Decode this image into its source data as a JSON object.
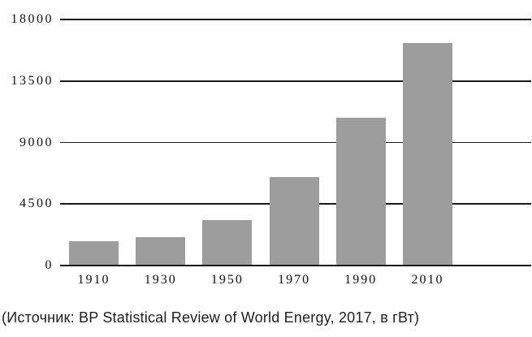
{
  "chart_data": {
    "type": "bar",
    "title": "",
    "categories": [
      "1910",
      "1930",
      "1950",
      "1970",
      "1990",
      "2010"
    ],
    "values": [
      1800,
      2100,
      3300,
      6500,
      10800,
      16300
    ],
    "xlabel": "",
    "ylabel": "",
    "ylim": [
      0,
      18000
    ],
    "yticks": [
      0,
      4500,
      9000,
      13500,
      18000
    ],
    "grid": true,
    "legend": false,
    "bar_color": "#9d9d9d",
    "line_color": "#1a1a1a",
    "text_color": "#111111",
    "source_note": "(Источник: BP Statistical Review of World Energy, 2017, в гВт)"
  }
}
